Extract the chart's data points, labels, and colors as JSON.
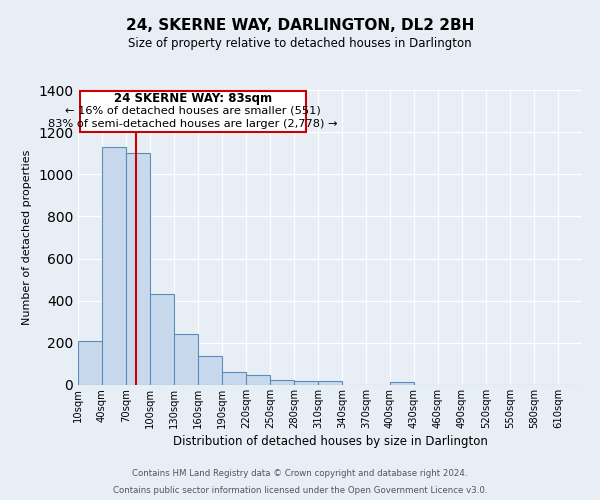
{
  "title": "24, SKERNE WAY, DARLINGTON, DL2 2BH",
  "subtitle": "Size of property relative to detached houses in Darlington",
  "xlabel": "Distribution of detached houses by size in Darlington",
  "ylabel": "Number of detached properties",
  "categories": [
    "10sqm",
    "40sqm",
    "70sqm",
    "100sqm",
    "130sqm",
    "160sqm",
    "190sqm",
    "220sqm",
    "250sqm",
    "280sqm",
    "310sqm",
    "340sqm",
    "370sqm",
    "400sqm",
    "430sqm",
    "460sqm",
    "490sqm",
    "520sqm",
    "550sqm",
    "580sqm",
    "610sqm"
  ],
  "values": [
    210,
    1130,
    1100,
    430,
    240,
    140,
    60,
    47,
    22,
    17,
    17,
    0,
    0,
    12,
    0,
    0,
    0,
    0,
    0,
    0,
    0
  ],
  "bar_color": "#c9d9ed",
  "bar_edge_color": "#5b8db8",
  "vline_x": 83,
  "vline_color": "#cc0000",
  "ylim": [
    0,
    1400
  ],
  "yticks": [
    0,
    200,
    400,
    600,
    800,
    1000,
    1200,
    1400
  ],
  "annotation_title": "24 SKERNE WAY: 83sqm",
  "annotation_line1": "← 16% of detached houses are smaller (551)",
  "annotation_line2": "83% of semi-detached houses are larger (2,778) →",
  "annotation_box_color": "#ffffff",
  "annotation_box_edge_color": "#cc0000",
  "footer_line1": "Contains HM Land Registry data © Crown copyright and database right 2024.",
  "footer_line2": "Contains public sector information licensed under the Open Government Licence v3.0.",
  "bg_color": "#e8eef5",
  "plot_bg_color": "#e8eef5",
  "bin_width": 30
}
